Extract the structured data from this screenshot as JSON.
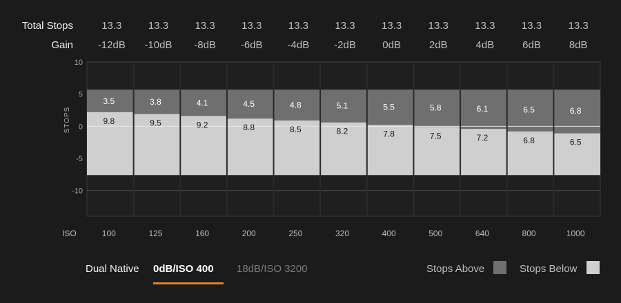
{
  "header": {
    "total_stops_label": "Total Stops",
    "gain_label": "Gain",
    "total_stops": [
      "13.3",
      "13.3",
      "13.3",
      "13.3",
      "13.3",
      "13.3",
      "13.3",
      "13.3",
      "13.3",
      "13.3",
      "13.3"
    ],
    "gain": [
      "-12dB",
      "-10dB",
      "-8dB",
      "-6dB",
      "-4dB",
      "-2dB",
      "0dB",
      "2dB",
      "4dB",
      "6dB",
      "8dB"
    ]
  },
  "chart_data": {
    "type": "bar",
    "categories": [
      "100",
      "125",
      "160",
      "200",
      "250",
      "320",
      "400",
      "500",
      "640",
      "800",
      "1000"
    ],
    "xlabel": "ISO",
    "ylabel": "STOPS",
    "ylim": [
      -14,
      10
    ],
    "yticks": [
      "10",
      "5",
      "0",
      "-5",
      "-10"
    ],
    "ytick_values": [
      10,
      5,
      0,
      -5,
      -10
    ],
    "range_top": 5.7,
    "range_bottom": -7.6,
    "series": [
      {
        "name": "Stops Above",
        "values": [
          3.5,
          3.8,
          4.1,
          4.5,
          4.8,
          5.1,
          5.5,
          5.8,
          6.1,
          6.5,
          6.8
        ],
        "labels": [
          "3.5",
          "3.8",
          "4.1",
          "4.5",
          "4.8",
          "5.1",
          "5.5",
          "5.8",
          "6.1",
          "6.5",
          "6.8"
        ],
        "color": "#6f6f6f"
      },
      {
        "name": "Stops Below",
        "values": [
          9.8,
          9.5,
          9.2,
          8.8,
          8.5,
          8.2,
          7.8,
          7.5,
          7.2,
          6.8,
          6.5
        ],
        "labels": [
          "9.8",
          "9.5",
          "9.2",
          "8.8",
          "8.5",
          "8.2",
          "7.8",
          "7.5",
          "7.2",
          "6.8",
          "6.5"
        ],
        "color": "#cfcfcf"
      }
    ],
    "grid": true,
    "legend": "bottom-right"
  },
  "footer": {
    "dual_native_label": "Dual Native",
    "modes": [
      "0dB/ISO 400",
      "18dB/ISO 3200"
    ],
    "selected_mode": "0dB/ISO 400",
    "accent_color": "#e0842e"
  },
  "legend": {
    "above_label": "Stops Above",
    "below_label": "Stops Below"
  }
}
